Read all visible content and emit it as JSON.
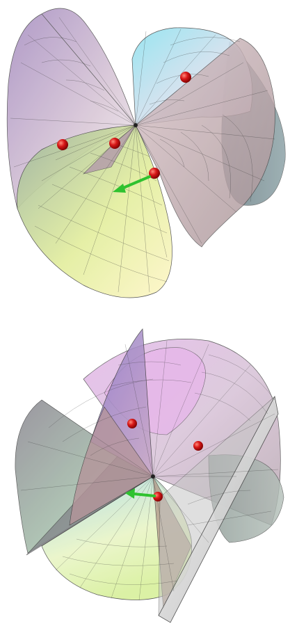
{
  "figures": [
    {
      "id": "top",
      "surfaces": [
        {
          "name": "lower-cone",
          "color": "#d6e48c"
        },
        {
          "name": "upper-left-cone",
          "color": "#a993b4"
        },
        {
          "name": "upper-right-cone",
          "color": "#a4e0ea"
        },
        {
          "name": "right-cone",
          "color": "#c9a7ad"
        }
      ],
      "points": 4,
      "arrow_color": "#2fc22f",
      "point_color": "#cc1111"
    },
    {
      "id": "bottom",
      "surfaces": [
        {
          "name": "back-cone",
          "color": "#e4b6ea"
        },
        {
          "name": "left-wedge",
          "color": "#96a896"
        },
        {
          "name": "front-cone",
          "color": "#d9ef9a"
        },
        {
          "name": "right-blade",
          "color": "#c8c8c8"
        }
      ],
      "points": 3,
      "arrow_color": "#2fc22f",
      "point_color": "#cc1111"
    }
  ]
}
